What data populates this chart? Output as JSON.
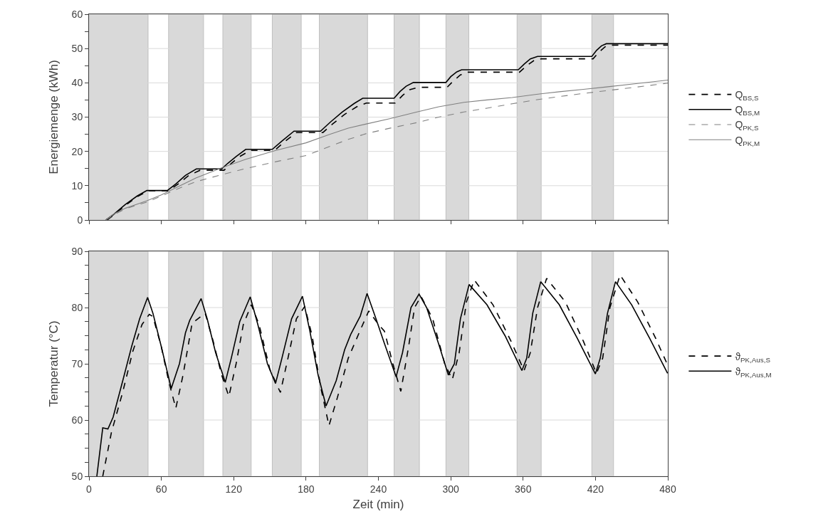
{
  "chart_data": [
    {
      "type": "line",
      "ylabel": "Energiemenge (kWh)",
      "xlim": [
        0,
        480
      ],
      "xticks": [
        0,
        60,
        120,
        180,
        240,
        300,
        360,
        420,
        480
      ],
      "ylim": [
        0,
        60
      ],
      "yticks": [
        0,
        {
          "value": 5,
          "label": null
        },
        10,
        {
          "value": 15,
          "label": null
        },
        20,
        {
          "value": 25,
          "label": null
        },
        30,
        {
          "value": 35,
          "label": null
        },
        40,
        {
          "value": 45,
          "label": null
        },
        50,
        {
          "value": 55,
          "label": null
        },
        60
      ],
      "tick_labels": "y",
      "grid": "y",
      "legend": "right",
      "bands": [
        {
          "axis": "x",
          "from": 0,
          "to": 49,
          "color": "#d9d9d9"
        },
        {
          "axis": "x",
          "from": 66,
          "to": 95,
          "color": "#d9d9d9"
        },
        {
          "axis": "x",
          "from": 111,
          "to": 134.5,
          "color": "#d9d9d9"
        },
        {
          "axis": "x",
          "from": 152,
          "to": 176,
          "color": "#d9d9d9"
        },
        {
          "axis": "x",
          "from": 191,
          "to": 231,
          "color": "#d9d9d9"
        },
        {
          "axis": "x",
          "from": 253,
          "to": 274,
          "color": "#d9d9d9"
        },
        {
          "axis": "x",
          "from": 296,
          "to": 315,
          "color": "#d9d9d9"
        },
        {
          "axis": "x",
          "from": 355,
          "to": 375,
          "color": "#d9d9d9"
        },
        {
          "axis": "x",
          "from": 417,
          "to": 435,
          "color": "#d9d9d9"
        }
      ],
      "series": [
        {
          "name": "Q$_{BS,S}$",
          "color": "#000000",
          "line_style": "dashed",
          "x": [
            15,
            20,
            30,
            40,
            49,
            66,
            74,
            82,
            92,
            112,
            118,
            125,
            134,
            154,
            162,
            172,
            194,
            202,
            212,
            222,
            230,
            254,
            260,
            266,
            273,
            297,
            302,
            308,
            314,
            357,
            363,
            369,
            375,
            418,
            423,
            428,
            434,
            480
          ],
          "values": [
            0,
            1.3,
            4.2,
            6.8,
            8.5,
            8.5,
            10.5,
            12.8,
            14.5,
            14.5,
            16.5,
            18.5,
            20.3,
            20.3,
            22.8,
            25.5,
            25.5,
            28,
            30.8,
            33,
            34.1,
            34.1,
            36.3,
            38,
            38.7,
            38.7,
            40.5,
            42.3,
            43.1,
            43.1,
            45,
            46.5,
            47,
            47,
            49,
            50.5,
            51,
            51
          ]
        },
        {
          "name": "Q$_{BS,M}$",
          "color": "#000000",
          "line_style": "solid",
          "x": [
            14,
            20,
            30,
            40,
            48,
            65,
            72,
            80,
            89,
            110,
            115,
            122,
            130,
            152,
            160,
            170,
            192,
            200,
            210,
            220,
            227,
            253,
            258,
            263,
            269,
            296,
            300,
            305,
            309,
            356,
            361,
            366,
            372,
            417,
            421,
            425,
            429,
            480
          ],
          "values": [
            0,
            1.5,
            4.5,
            7,
            8.6,
            8.6,
            10.5,
            13,
            14.9,
            14.9,
            16.5,
            18.5,
            20.6,
            20.6,
            23,
            25.9,
            25.9,
            28.5,
            31.5,
            34,
            35.5,
            35.5,
            37.5,
            39,
            40.1,
            40.1,
            41.8,
            43.2,
            43.8,
            43.8,
            45.5,
            47,
            47.7,
            47.7,
            49.5,
            50.8,
            51.4,
            51.4
          ]
        },
        {
          "name": "Q$_{PK,S}$",
          "color": "#808080",
          "line_style": "dashed",
          "x": [
            14,
            20,
            30,
            40,
            48,
            60,
            75,
            89,
            110,
            130,
            155,
            180,
            200,
            215,
            230,
            250,
            272,
            290,
            311,
            330,
            351,
            370,
            390,
            410,
            429,
            455,
            480
          ],
          "values": [
            0,
            1.4,
            3.2,
            4.4,
            5.2,
            7,
            9.3,
            11.2,
            13.2,
            15,
            17,
            18.8,
            21.5,
            23.5,
            25.2,
            26.8,
            28.4,
            30,
            31.5,
            32.6,
            33.9,
            35,
            36,
            36.9,
            37.7,
            38.8,
            39.9
          ]
        },
        {
          "name": "Q$_{PK,M}$",
          "color": "#808080",
          "line_style": "solid",
          "x": [
            14,
            20,
            30,
            40,
            48,
            60,
            75,
            89,
            110,
            130,
            155,
            180,
            200,
            215,
            230,
            250,
            272,
            290,
            311,
            330,
            351,
            370,
            390,
            410,
            429,
            455,
            480
          ],
          "values": [
            0,
            1.6,
            3.4,
            4.6,
            5.6,
            7.3,
            9.9,
            12.3,
            15.2,
            17.7,
            20.3,
            22.5,
            25,
            26.8,
            28,
            29.6,
            31.5,
            33,
            34.3,
            35,
            35.7,
            36.6,
            37.4,
            38.1,
            38.8,
            39.8,
            40.8
          ]
        }
      ]
    },
    {
      "type": "line",
      "xlabel": "Zeit (min)",
      "ylabel": "Temperatur (°C)",
      "xlim": [
        0,
        480
      ],
      "xticks": [
        0,
        60,
        120,
        180,
        240,
        300,
        360,
        420,
        480
      ],
      "ylim": [
        50,
        90
      ],
      "yticks": [
        50,
        {
          "value": 52.5,
          "label": null
        },
        {
          "value": 55,
          "label": null
        },
        {
          "value": 57.5,
          "label": null
        },
        60,
        {
          "value": 62.5,
          "label": null
        },
        {
          "value": 65,
          "label": null
        },
        {
          "value": 67.5,
          "label": null
        },
        70,
        {
          "value": 72.5,
          "label": null
        },
        {
          "value": 75,
          "label": null
        },
        {
          "value": 77.5,
          "label": null
        },
        80,
        {
          "value": 82.5,
          "label": null
        },
        {
          "value": 85,
          "label": null
        },
        {
          "value": 87.5,
          "label": null
        },
        90
      ],
      "grid": "y",
      "legend": "right",
      "bands": [
        {
          "axis": "x",
          "from": 0,
          "to": 49,
          "color": "#d9d9d9"
        },
        {
          "axis": "x",
          "from": 66,
          "to": 95,
          "color": "#d9d9d9"
        },
        {
          "axis": "x",
          "from": 111,
          "to": 134.5,
          "color": "#d9d9d9"
        },
        {
          "axis": "x",
          "from": 152,
          "to": 176,
          "color": "#d9d9d9"
        },
        {
          "axis": "x",
          "from": 191,
          "to": 231,
          "color": "#d9d9d9"
        },
        {
          "axis": "x",
          "from": 253,
          "to": 274,
          "color": "#d9d9d9"
        },
        {
          "axis": "x",
          "from": 296,
          "to": 315,
          "color": "#d9d9d9"
        },
        {
          "axis": "x",
          "from": 355,
          "to": 375,
          "color": "#d9d9d9"
        },
        {
          "axis": "x",
          "from": 417,
          "to": 435,
          "color": "#d9d9d9"
        }
      ],
      "series": [
        {
          "name": "ϑ$_{PK,Aus,S}$",
          "color": "#000000",
          "line_style": "dashed",
          "x": [
            11.4,
            18.6,
            28,
            36.3,
            44,
            50,
            53,
            60,
            66,
            72,
            78,
            85.5,
            96.3,
            103,
            110,
            116,
            122,
            128,
            134.6,
            141,
            150,
            158.7,
            165,
            172,
            178.9,
            185,
            192,
            199,
            206,
            215,
            225,
            232,
            240,
            245,
            252,
            258.6,
            265,
            270,
            275.3,
            285,
            295,
            301.3,
            307,
            313,
            319.5,
            335,
            350,
            360.8,
            366,
            372,
            379.5,
            395,
            410,
            420.8,
            426,
            432,
            440.4,
            455,
            470,
            480
          ],
          "values": [
            50,
            57.8,
            65,
            72.2,
            77,
            78.8,
            78.4,
            73,
            67,
            62.1,
            68,
            77.2,
            79,
            74,
            68,
            64.2,
            70,
            77,
            80.5,
            77,
            69,
            64.9,
            71,
            78,
            80.2,
            75,
            66,
            59,
            64,
            71,
            76,
            79.4,
            77,
            75.8,
            70,
            65.1,
            73,
            80,
            82,
            78,
            70,
            67.2,
            72,
            81,
            84.9,
            80.5,
            74,
            68.8,
            72,
            80,
            85.2,
            81,
            74,
            68.3,
            71,
            80,
            85.8,
            81,
            74.5,
            69.7
          ]
        },
        {
          "name": "ϑ$_{PK,Aus,M}$",
          "color": "#000000",
          "line_style": "solid",
          "x": [
            6.5,
            11.4,
            15.7,
            20,
            28,
            35.4,
            42,
            48.6,
            53,
            60,
            68.2,
            75,
            80,
            83.5,
            93,
            98,
            105,
            113,
            118,
            125,
            133.7,
            140,
            148,
            154.7,
            160,
            168,
            177,
            183,
            190,
            196.6,
            205,
            212,
            217,
            225,
            230.6,
            238,
            245,
            254.7,
            260,
            267,
            273.7,
            280,
            290,
            298,
            303,
            308,
            315.2,
            330,
            345,
            359,
            363,
            368,
            374.6,
            390,
            405,
            419.9,
            424,
            430,
            436.6,
            450,
            465,
            479.8
          ],
          "values": [
            50,
            58.6,
            58.4,
            60.5,
            67,
            73.1,
            78,
            81.8,
            79,
            73,
            65.6,
            70,
            75.5,
            77.7,
            81.6,
            78,
            72,
            66.7,
            71,
            77.5,
            81.9,
            77,
            70,
            66.5,
            71,
            78,
            82,
            76,
            68,
            62.5,
            67,
            72.5,
            75.2,
            78.5,
            82.5,
            78,
            73.6,
            67.7,
            72,
            80,
            82.4,
            80,
            73.5,
            68,
            70,
            78,
            84.1,
            80.5,
            75,
            68.8,
            71,
            79,
            84.6,
            80.5,
            74.5,
            68.2,
            71,
            79,
            84.6,
            80.5,
            74.5,
            68.3
          ]
        }
      ]
    }
  ]
}
